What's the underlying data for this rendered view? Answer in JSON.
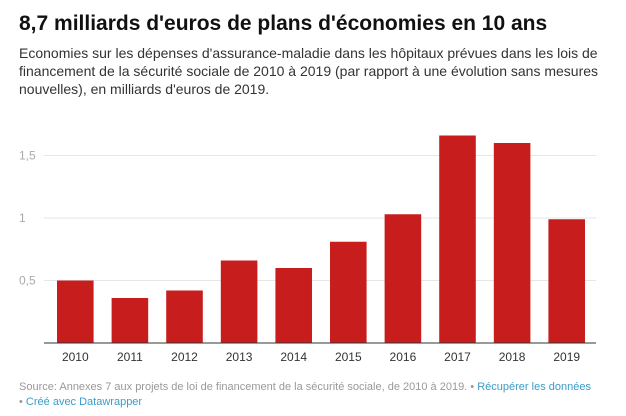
{
  "title": "8,7 milliards d'euros de plans d'économies en 10 ans",
  "subtitle": "Economies sur les dépenses d'assurance-maladie dans les hôpitaux prévues dans les lois de financement de la sécurité sociale de 2010 à 2019 (par rapport à une évolution sans mesures nouvelles), en milliards d'euros de 2019.",
  "footer": {
    "source": "Source: Annexes 7 aux projets de loi de financement de la sécurité sociale, de 2010 à 2019. •",
    "download_link": "Récupérer les données",
    "credit_prefix": "• ",
    "credit_link": "Créé avec Datawrapper"
  },
  "chart_data": {
    "type": "bar",
    "categories": [
      "2010",
      "2011",
      "2012",
      "2013",
      "2014",
      "2015",
      "2016",
      "2017",
      "2018",
      "2019"
    ],
    "values": [
      0.5,
      0.36,
      0.42,
      0.66,
      0.6,
      0.81,
      1.03,
      1.66,
      1.6,
      0.99
    ],
    "ylim": [
      0,
      1.7
    ],
    "yticks": [
      0.5,
      1,
      1.5
    ],
    "ytick_labels": [
      "0,5",
      "1",
      "1,5"
    ],
    "grid": true,
    "bar_color": "#c71e1d"
  }
}
